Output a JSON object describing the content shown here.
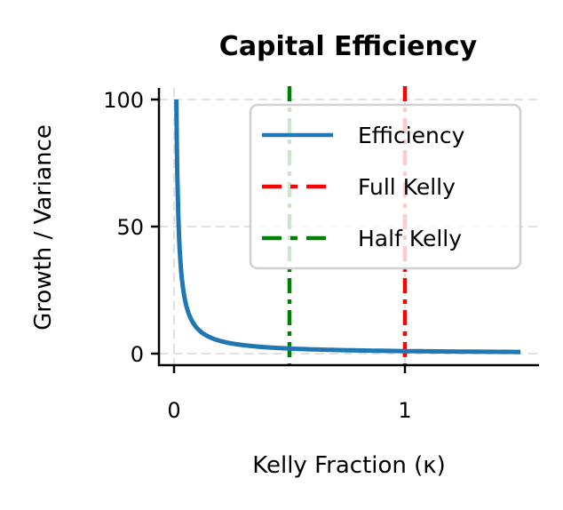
{
  "chart_data": {
    "type": "line",
    "title": "Capital Efficiency",
    "xlabel": "Kelly Fraction (κ)",
    "ylabel": "Growth / Variance",
    "xlim": [
      -0.07,
      1.58
    ],
    "ylim": [
      -4.5,
      104.5
    ],
    "xticks": [
      0,
      1
    ],
    "xtick_labels": [
      "0",
      "1"
    ],
    "yticks": [
      0,
      50,
      100
    ],
    "ytick_labels": [
      "0",
      "50",
      "100"
    ],
    "grid": true,
    "legend_position": "upper right",
    "series": [
      {
        "name": "Efficiency",
        "style": "solid",
        "color": "#1f77b4",
        "function": "1/x",
        "x": [
          0.01,
          0.012,
          0.015,
          0.02,
          0.025,
          0.03,
          0.04,
          0.05,
          0.06,
          0.08,
          0.1,
          0.125,
          0.15,
          0.2,
          0.25,
          0.3,
          0.4,
          0.5,
          0.6,
          0.75,
          0.9,
          1.0,
          1.1,
          1.25,
          1.4,
          1.5
        ],
        "y": [
          100,
          83.3,
          66.7,
          50,
          40,
          33.3,
          25,
          20,
          16.7,
          12.5,
          10,
          8,
          6.67,
          5,
          4,
          3.33,
          2.5,
          2,
          1.67,
          1.33,
          1.11,
          1,
          0.91,
          0.8,
          0.71,
          0.67
        ]
      },
      {
        "name": "Full Kelly",
        "style": "dashed",
        "color": "#ff0000",
        "type": "vline",
        "x": 1.0
      },
      {
        "name": "Half Kelly",
        "style": "dashed",
        "color": "#008000",
        "type": "vline",
        "x": 0.5
      }
    ]
  },
  "legend": {
    "items": [
      {
        "label": "Efficiency",
        "color": "#1f77b4",
        "style": "solid"
      },
      {
        "label": "Full Kelly",
        "color": "#ff0000",
        "style": "dashed"
      },
      {
        "label": "Half Kelly",
        "color": "#008000",
        "style": "dashed"
      }
    ]
  }
}
